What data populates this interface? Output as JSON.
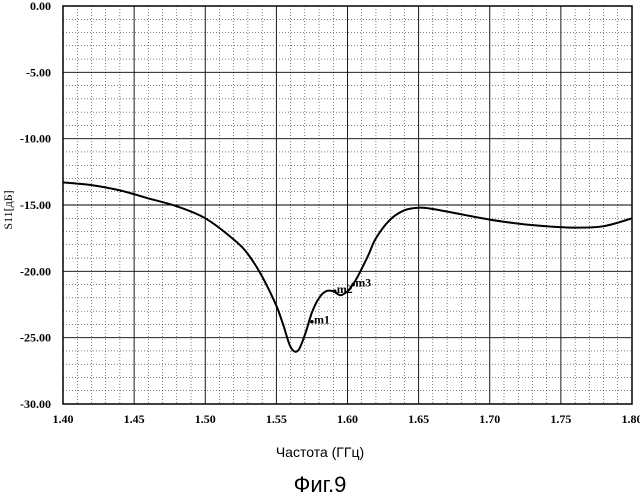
{
  "chart_data": {
    "type": "line",
    "title": "",
    "xlabel": "Частота (ГГц)",
    "ylabel": "S11[дБ]",
    "xlim": [
      1.4,
      1.8
    ],
    "ylim": [
      -30.0,
      0.0
    ],
    "x_ticks": [
      "1.40",
      "1.45",
      "1.50",
      "1.55",
      "1.60",
      "1.65",
      "1.70",
      "1.75",
      "1.80"
    ],
    "y_ticks": [
      "0.00",
      "-5.00",
      "-10.00",
      "-15.00",
      "-20.00",
      "-25.00",
      "-30.00"
    ],
    "grid": true,
    "series": [
      {
        "name": "S11",
        "x": [
          1.4,
          1.42,
          1.44,
          1.46,
          1.48,
          1.5,
          1.52,
          1.53,
          1.54,
          1.55,
          1.555,
          1.56,
          1.565,
          1.57,
          1.575,
          1.58,
          1.585,
          1.59,
          1.595,
          1.6,
          1.605,
          1.61,
          1.615,
          1.62,
          1.63,
          1.64,
          1.65,
          1.66,
          1.68,
          1.7,
          1.72,
          1.74,
          1.76,
          1.78,
          1.8
        ],
        "y": [
          -13.3,
          -13.5,
          -13.9,
          -14.5,
          -15.1,
          -16.0,
          -17.6,
          -18.7,
          -20.4,
          -22.6,
          -24.1,
          -25.7,
          -26.0,
          -24.8,
          -23.1,
          -22.0,
          -21.5,
          -21.5,
          -21.8,
          -21.5,
          -20.8,
          -19.8,
          -18.7,
          -17.5,
          -16.1,
          -15.4,
          -15.2,
          -15.3,
          -15.7,
          -16.1,
          -16.4,
          -16.6,
          -16.7,
          -16.6,
          -16.0
        ]
      }
    ],
    "markers": [
      {
        "name": "m1",
        "x": 1.575,
        "y": -23.8
      },
      {
        "name": "m2",
        "x": 1.591,
        "y": -21.5
      },
      {
        "name": "m3",
        "x": 1.604,
        "y": -21.0
      }
    ]
  },
  "figure": {
    "caption": "Фиг.9"
  }
}
